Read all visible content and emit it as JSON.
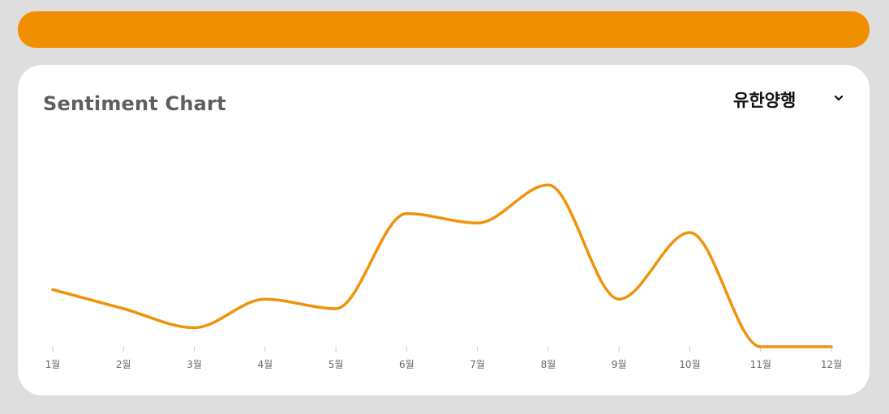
{
  "header": {
    "accent_color": "#f08f00"
  },
  "card": {
    "title": "Sentiment Chart",
    "selector": {
      "selected": "유한양행",
      "icon": "chevron-down-icon"
    }
  },
  "chart_data": {
    "type": "line",
    "smooth": true,
    "categories": [
      "1월",
      "2월",
      "3월",
      "4월",
      "5월",
      "6월",
      "7월",
      "8월",
      "9월",
      "10월",
      "11월",
      "12월"
    ],
    "series": [
      {
        "color": "#f0920b",
        "values": [
          0.3,
          0.2,
          0.1,
          0.25,
          0.2,
          0.7,
          0.65,
          0.85,
          0.25,
          0.6,
          0.0,
          0.0
        ]
      }
    ],
    "ylim": [
      0,
      1
    ],
    "grid": false,
    "legend": "none"
  }
}
